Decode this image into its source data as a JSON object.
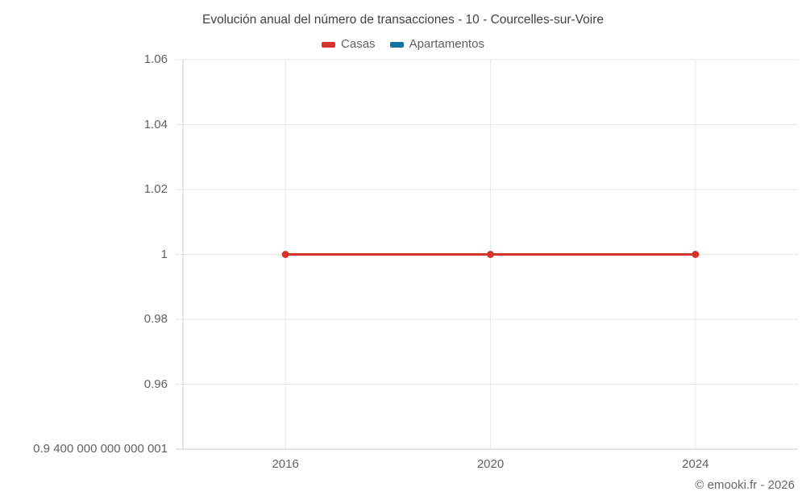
{
  "chart_data": {
    "type": "line",
    "title": "Evolución anual del número de transacciones - 10 - Courcelles-sur-Voire",
    "x": [
      2016,
      2020,
      2024
    ],
    "series": [
      {
        "name": "Casas",
        "color": "#d7352b",
        "values": [
          1,
          1,
          1
        ]
      },
      {
        "name": "Apartamentos",
        "color": "#16729e",
        "values": []
      }
    ],
    "x_ticks": {
      "values": [
        2016,
        2020,
        2024
      ],
      "labels": [
        "2016",
        "2020",
        "2024"
      ]
    },
    "y_ticks": {
      "values": [
        1.06,
        1.04,
        1.02,
        1,
        0.98,
        0.96,
        0.94
      ],
      "labels": [
        "1.06",
        "1.04",
        "1.02",
        "1",
        "0.98",
        "0.96",
        "0.9 400 000 000 000 001"
      ]
    },
    "xlim": [
      2014,
      2026
    ],
    "ylim": [
      0.94,
      1.06
    ],
    "grid": true,
    "legend_position": "top",
    "colors": {
      "grid": "#e8e8e8",
      "axis": "#cccccc",
      "tick_text": "#616161",
      "title_text": "#424242"
    }
  },
  "footer": {
    "copyright": "© emooki.fr - 2026"
  }
}
